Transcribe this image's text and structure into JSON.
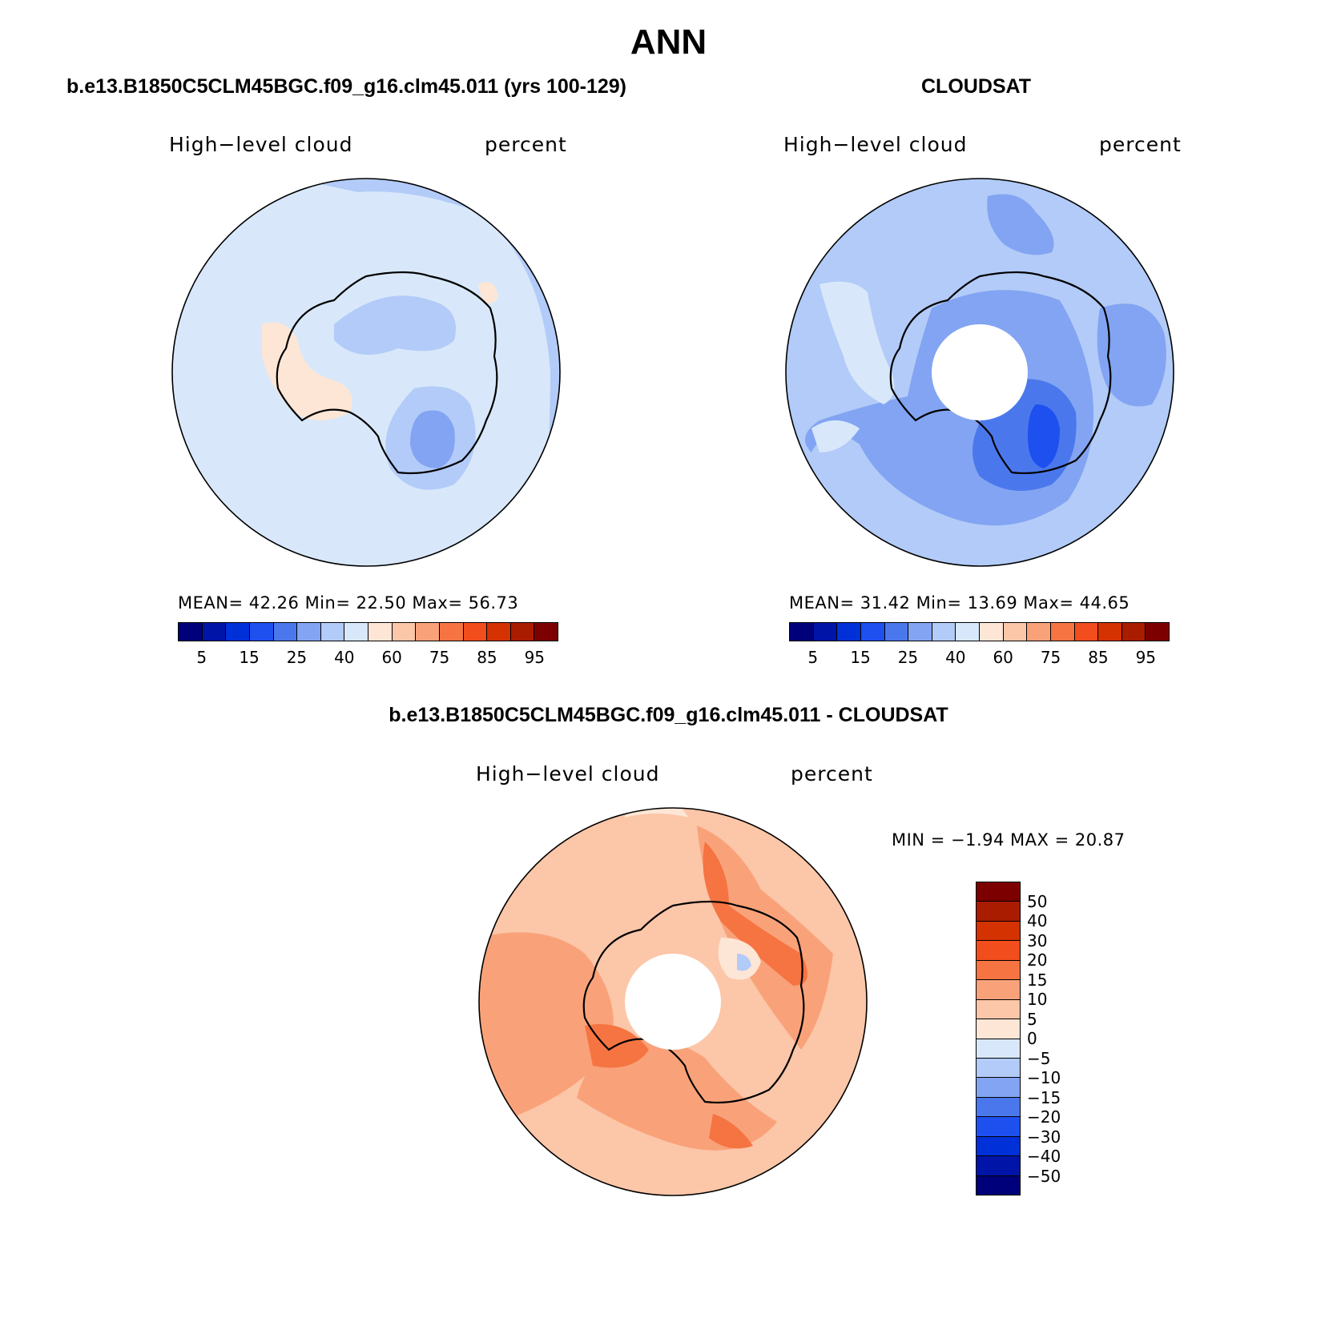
{
  "title": "ANN",
  "colors": {
    "scale": [
      "#00007a",
      "#0015a8",
      "#0030d8",
      "#1e50f0",
      "#4a78ec",
      "#82a4f2",
      "#b2cbf8",
      "#d8e8fa",
      "#fde6d6",
      "#fcc6a8",
      "#f9a27a",
      "#f57442",
      "#f24d1c",
      "#d43200",
      "#aa1c00",
      "#7d0000"
    ],
    "diff_scale": [
      "#00007a",
      "#0015a8",
      "#0030d8",
      "#1e50f0",
      "#4a78ec",
      "#82a4f2",
      "#b2cbf8",
      "#d8e8fa",
      "#fde6d6",
      "#fcc6a8",
      "#f9a27a",
      "#f57442",
      "#f24d1c",
      "#d43200",
      "#aa1c00",
      "#7d0000"
    ]
  },
  "panels": {
    "model": {
      "case_title": "b.e13.B1850C5CLM45BGC.f09_g16.clm45.011 (yrs 100-129)",
      "variable": "High−level cloud",
      "units": "percent",
      "mean_label": "MEAN=",
      "mean": "42.26",
      "min_label": "Min=",
      "min": "22.50",
      "max_label": "Max=",
      "max": "56.73",
      "ticks": [
        "5",
        "15",
        "25",
        "40",
        "60",
        "75",
        "85",
        "95"
      ]
    },
    "obs": {
      "case_title": "CLOUDSAT",
      "variable": "High−level cloud",
      "units": "percent",
      "mean_label": "MEAN=",
      "mean": "31.42",
      "min_label": "Min=",
      "min": "13.69",
      "max_label": "Max=",
      "max": "44.65",
      "ticks": [
        "5",
        "15",
        "25",
        "40",
        "60",
        "75",
        "85",
        "95"
      ]
    },
    "diff": {
      "case_title": "b.e13.B1850C5CLM45BGC.f09_g16.clm45.011 - CLOUDSAT",
      "variable": "High−level cloud",
      "units": "percent",
      "min_label": "MIN =",
      "min": "−1.94",
      "max_label": "MAX =",
      "max": "20.87",
      "ticks": [
        "50",
        "40",
        "30",
        "20",
        "15",
        "10",
        "5",
        "0",
        "−5",
        "−10",
        "−15",
        "−20",
        "−30",
        "−40",
        "−50"
      ]
    }
  }
}
